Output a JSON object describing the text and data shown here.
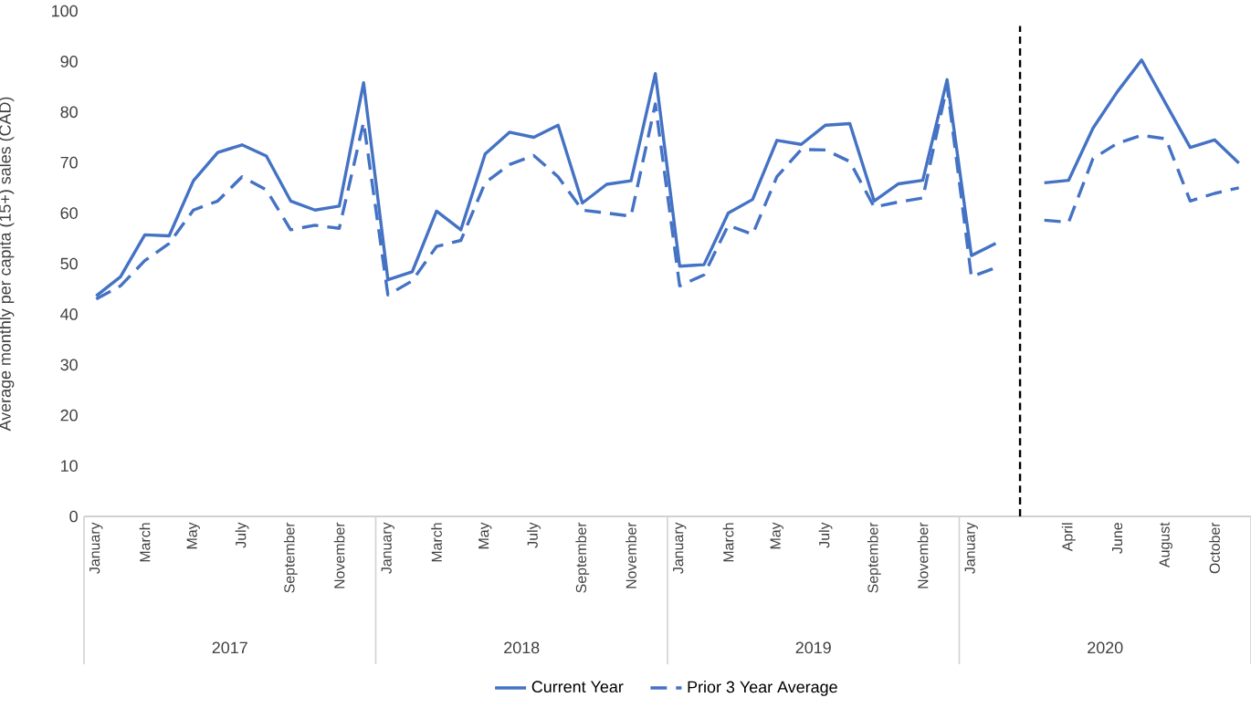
{
  "chart_data": {
    "type": "line",
    "ylabel": "Average monthly per capita (15+) sales (CAD)",
    "categories": [
      "January",
      null,
      "March",
      null,
      "May",
      null,
      "July",
      null,
      "September",
      null,
      "November",
      null,
      "January",
      null,
      "March",
      null,
      "May",
      null,
      "July",
      null,
      "September",
      null,
      "November",
      null,
      "January",
      null,
      "March",
      null,
      "May",
      null,
      "July",
      null,
      "September",
      null,
      "November",
      null,
      "January",
      null,
      null,
      null,
      "April",
      null,
      "June",
      null,
      "August",
      null,
      "October",
      null
    ],
    "series": [
      {
        "name": "Current Year",
        "color": "#4472c4",
        "line_style": "solid",
        "values": [
          43.6,
          47.4,
          55.7,
          55.5,
          66.4,
          72,
          73.5,
          71.3,
          62.4,
          60.6,
          61.4,
          85.8,
          46.8,
          48.4,
          60.4,
          56.7,
          71.7,
          76,
          75,
          77.4,
          62,
          65.7,
          66.4,
          87.6,
          49.5,
          49.8,
          60,
          62.7,
          74.4,
          73.6,
          77.4,
          77.7,
          62.4,
          65.8,
          66.5,
          86.4,
          51.6,
          54,
          null,
          66,
          66.5,
          76.8,
          84,
          90.3,
          81.6,
          73,
          74.5,
          69.9
        ]
      },
      {
        "name": "Prior 3 Year Average",
        "color": "#4472c4",
        "line_style": "dashed",
        "values": [
          43,
          45.6,
          50.6,
          54,
          60.6,
          62.4,
          67.2,
          64.6,
          56.7,
          57.6,
          57,
          78,
          43.8,
          46.6,
          53.4,
          54.6,
          66,
          69.6,
          71.4,
          67.2,
          60.6,
          60,
          59.4,
          81.6,
          45.6,
          47.8,
          57.6,
          55.8,
          67.2,
          72.6,
          72.5,
          70.2,
          61.2,
          62.2,
          63,
          85.2,
          47.4,
          49.2,
          null,
          58.6,
          58.2,
          70.8,
          73.8,
          75.4,
          74.7,
          62.4,
          63.9,
          65
        ]
      }
    ],
    "ylim": [
      0,
      100
    ],
    "yticks": [
      0,
      10,
      20,
      30,
      40,
      50,
      60,
      70,
      80,
      90,
      100
    ],
    "annotations": [
      "2017",
      "2018",
      "2019",
      "2020"
    ],
    "legend": "bottom"
  }
}
